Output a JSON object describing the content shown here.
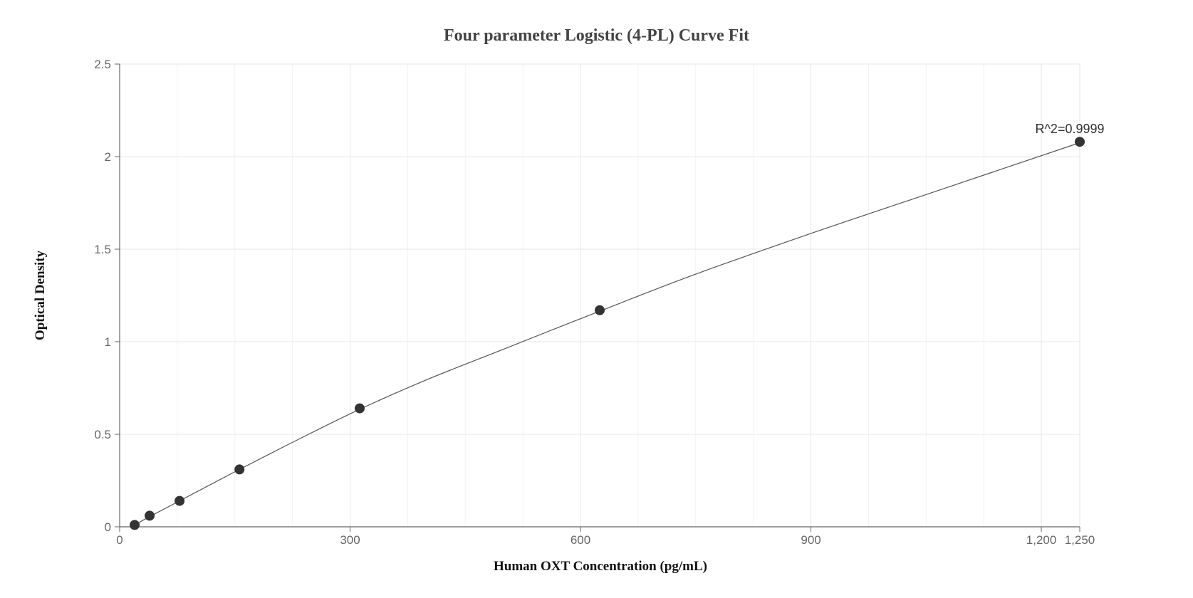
{
  "chart_data": {
    "type": "scatter",
    "title": "Four parameter Logistic (4-PL) Curve Fit",
    "xlabel": "Human OXT Concentration (pg/mL)",
    "ylabel": "Optical Density",
    "xlim": [
      0,
      1250
    ],
    "ylim": [
      0,
      2.5
    ],
    "x_ticks": [
      {
        "value": 0,
        "label": "0"
      },
      {
        "value": 300,
        "label": "300"
      },
      {
        "value": 600,
        "label": "600"
      },
      {
        "value": 900,
        "label": "900"
      },
      {
        "value": 1200,
        "label": "1,200"
      },
      {
        "value": 1250,
        "label": "1,250"
      }
    ],
    "y_ticks": [
      {
        "value": 0,
        "label": "0"
      },
      {
        "value": 0.5,
        "label": "0.5"
      },
      {
        "value": 1,
        "label": "1"
      },
      {
        "value": 1.5,
        "label": "1.5"
      },
      {
        "value": 2,
        "label": "2"
      },
      {
        "value": 2.5,
        "label": "2.5"
      }
    ],
    "grid": true,
    "points": [
      {
        "x": 19.5,
        "y": 0.01
      },
      {
        "x": 39,
        "y": 0.06
      },
      {
        "x": 78,
        "y": 0.14
      },
      {
        "x": 156,
        "y": 0.31
      },
      {
        "x": 312.5,
        "y": 0.64
      },
      {
        "x": 625,
        "y": 1.17
      },
      {
        "x": 1250,
        "y": 2.08
      }
    ],
    "fit_curve": {
      "model": "4-PL",
      "points": [
        {
          "x": 19.5,
          "y": 0.01
        },
        {
          "x": 39,
          "y": 0.055
        },
        {
          "x": 78,
          "y": 0.14
        },
        {
          "x": 156,
          "y": 0.31
        },
        {
          "x": 234,
          "y": 0.475
        },
        {
          "x": 312.5,
          "y": 0.635
        },
        {
          "x": 400,
          "y": 0.795
        },
        {
          "x": 500,
          "y": 0.96
        },
        {
          "x": 625,
          "y": 1.165
        },
        {
          "x": 750,
          "y": 1.365
        },
        {
          "x": 900,
          "y": 1.585
        },
        {
          "x": 1050,
          "y": 1.795
        },
        {
          "x": 1250,
          "y": 2.075
        }
      ]
    },
    "annotation": {
      "text": "R^2=0.9999",
      "x": 1250,
      "y": 2.08
    },
    "colors": {
      "marker": "#333333",
      "line": "#555555",
      "grid": "#e6e6e6",
      "axis": "#666666"
    }
  }
}
